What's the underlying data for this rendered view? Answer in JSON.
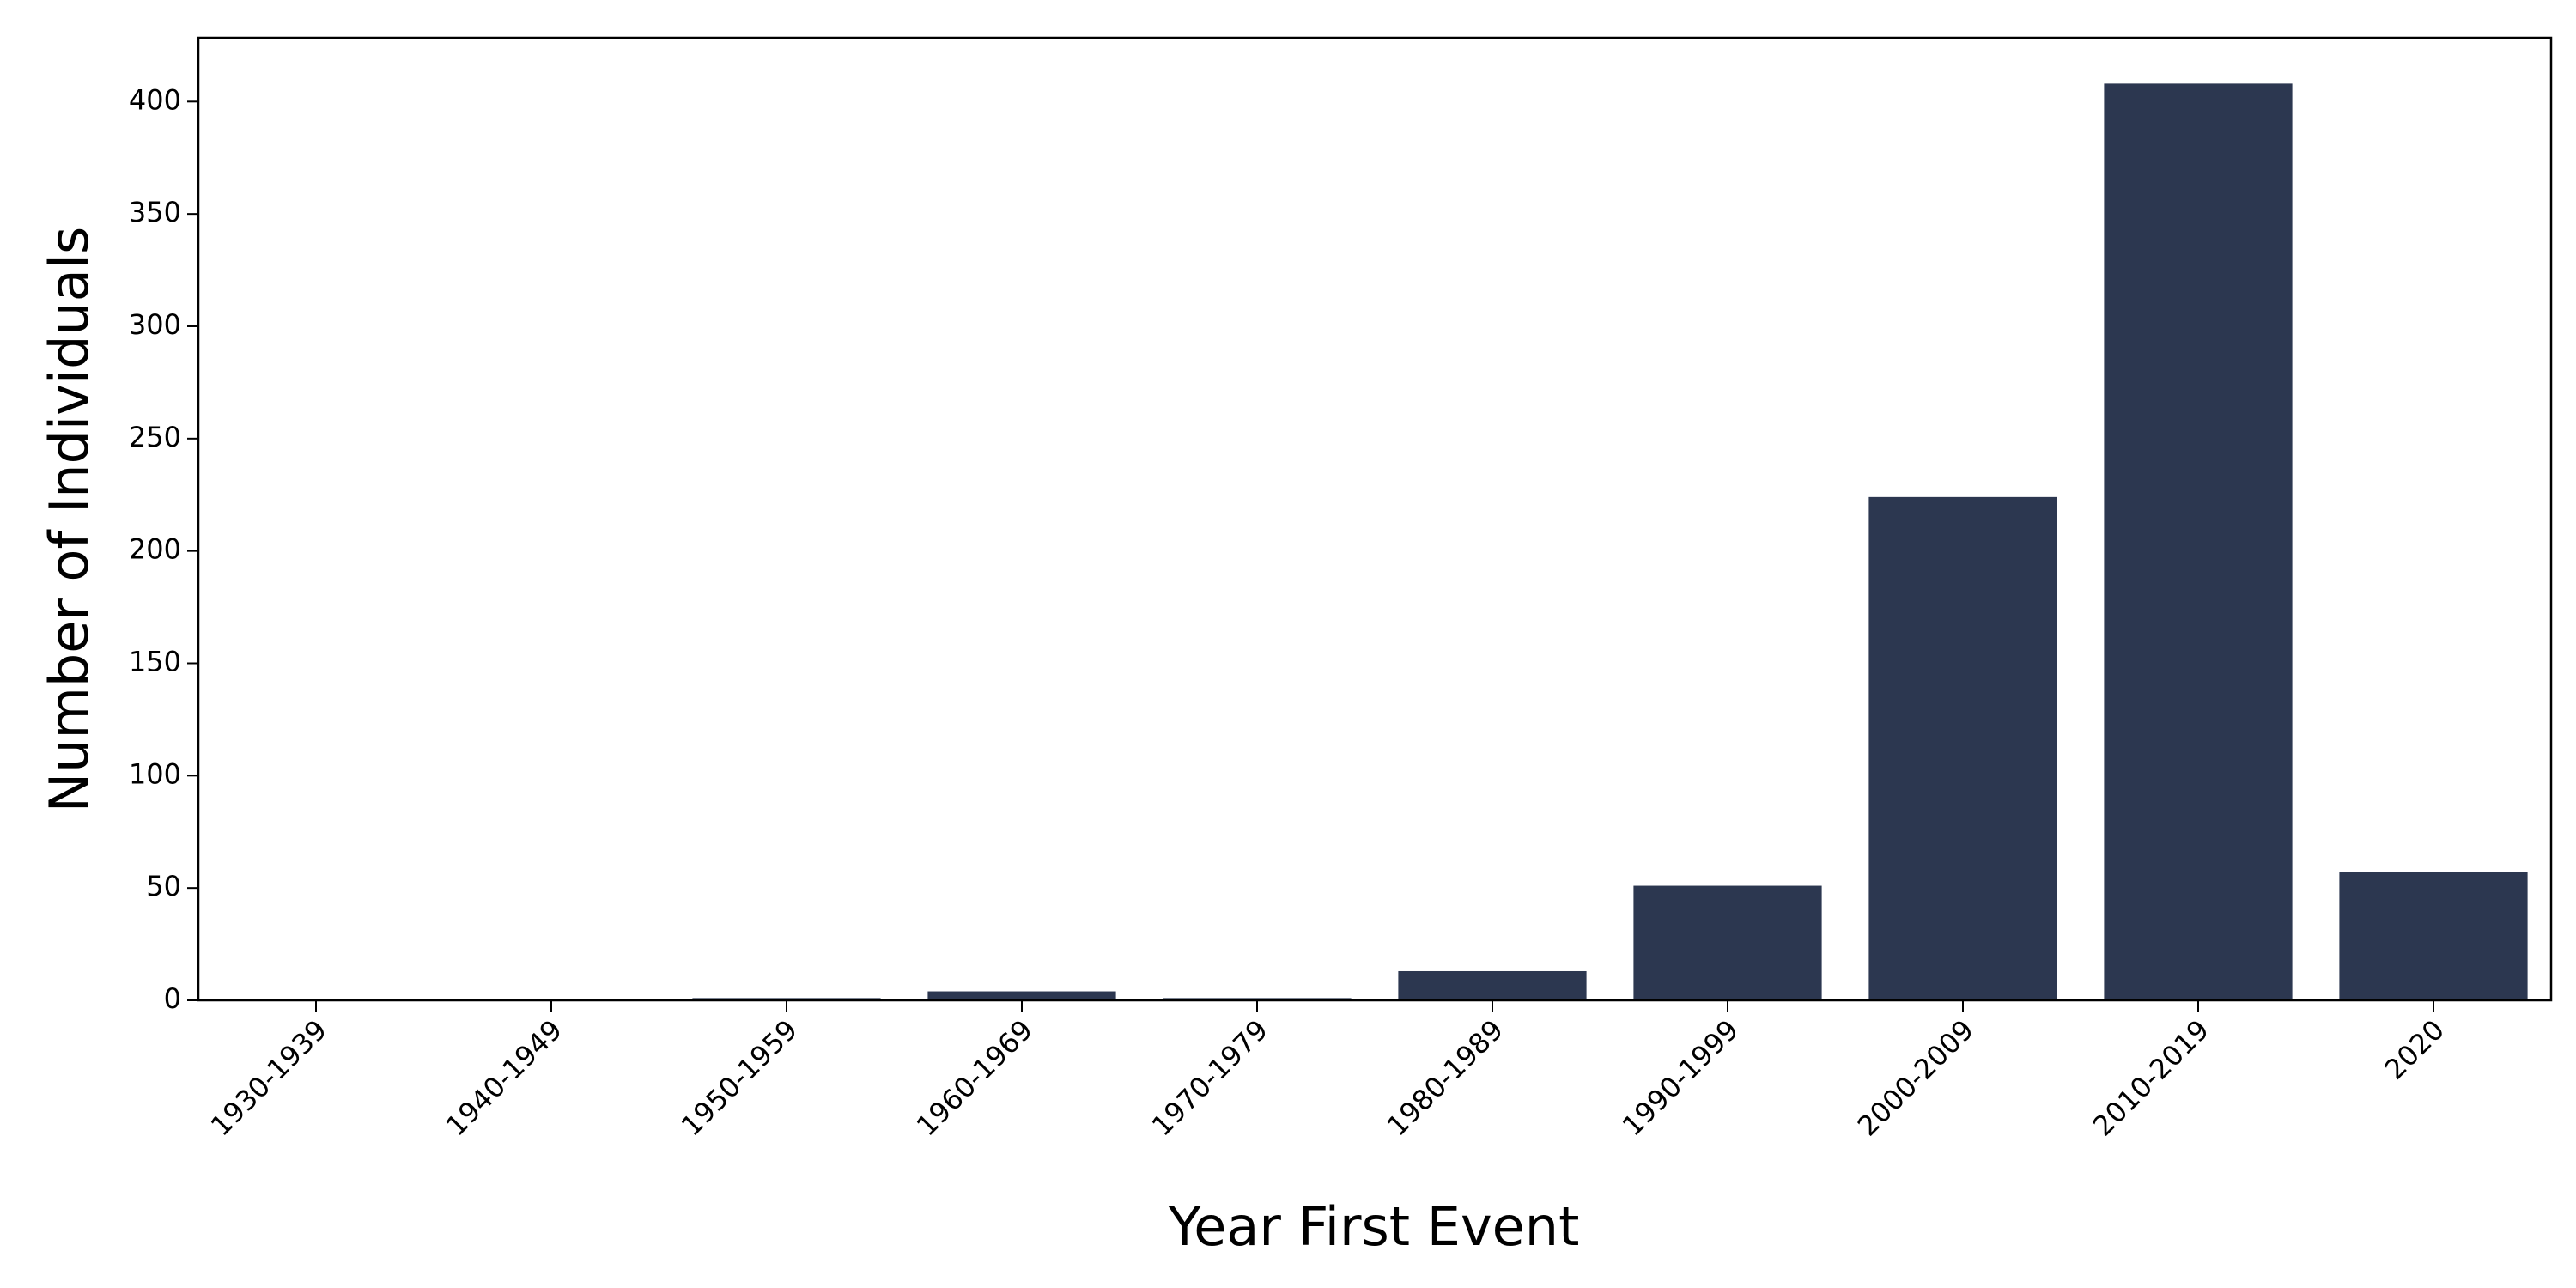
{
  "chart_data": {
    "type": "bar",
    "x_label": "Year First Event",
    "y_label": "Number of Individuals",
    "categories": [
      "1930-1939",
      "1940-1949",
      "1950-1959",
      "1960-1969",
      "1970-1979",
      "1980-1989",
      "1990-1999",
      "2000-2009",
      "2010-2019",
      "2020"
    ],
    "values": [
      0,
      0,
      1,
      4,
      1,
      13,
      51,
      224,
      408,
      57
    ],
    "color": "#2c3750",
    "ylim": [
      0,
      428.4
    ],
    "yticks": [
      0,
      50,
      100,
      150,
      200,
      250,
      300,
      350,
      400
    ],
    "grid": false
  }
}
